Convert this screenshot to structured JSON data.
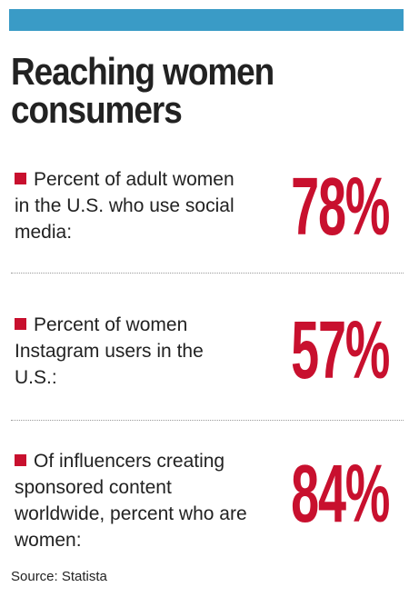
{
  "title": {
    "line1": "Reaching women",
    "line2": "consumers"
  },
  "accent_color": "#c8102e",
  "bar_color": "#3a9bc6",
  "stats": [
    {
      "label": "Percent of adult women in the U.S. who use social media:",
      "value": "78%"
    },
    {
      "label": "Percent of women Instagram users in the U.S.:",
      "value": "57%"
    },
    {
      "label": "Of influencers creating sponsored content worldwide, percent who are women:",
      "value": "84%"
    }
  ],
  "source": "Source: Statista"
}
